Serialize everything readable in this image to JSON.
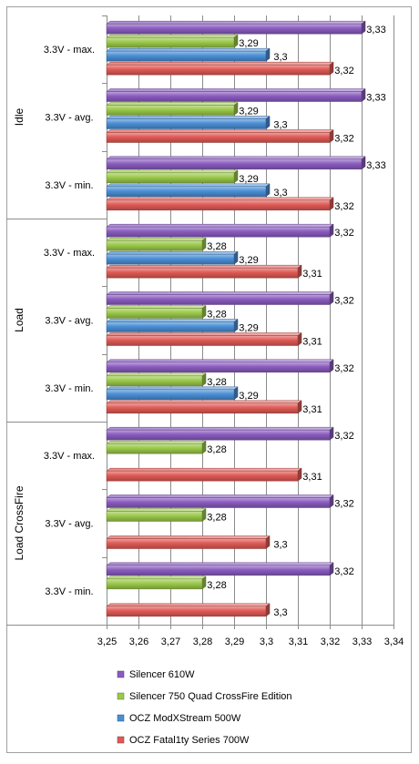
{
  "chart_data": {
    "type": "bar",
    "orientation": "horizontal",
    "title": "",
    "xlabel": "",
    "ylabel": "",
    "xlim": [
      3.25,
      3.34
    ],
    "x_ticks": [
      "3,25",
      "3,26",
      "3,27",
      "3,28",
      "3,29",
      "3,3",
      "3,31",
      "3,32",
      "3,33",
      "3,34"
    ],
    "grid": true,
    "legend_position": "bottom",
    "groups": [
      "Idle",
      "Load",
      "Load CrossFire"
    ],
    "categories": [
      {
        "group": "Idle",
        "label": "3.3V - max."
      },
      {
        "group": "Idle",
        "label": "3.3V - avg."
      },
      {
        "group": "Idle",
        "label": "3.3V - min."
      },
      {
        "group": "Load",
        "label": "3.3V - max."
      },
      {
        "group": "Load",
        "label": "3.3V - avg."
      },
      {
        "group": "Load",
        "label": "3.3V - min."
      },
      {
        "group": "Load CrossFire",
        "label": "3.3V - max."
      },
      {
        "group": "Load CrossFire",
        "label": "3.3V - avg."
      },
      {
        "group": "Load CrossFire",
        "label": "3.3V - min."
      }
    ],
    "series": [
      {
        "name": "Silencer 610W",
        "color": "#8a5cc0",
        "values": [
          3.33,
          3.33,
          3.33,
          3.32,
          3.32,
          3.32,
          3.32,
          3.32,
          3.32
        ],
        "labels": [
          "3,33",
          "3,33",
          "3,33",
          "3,32",
          "3,32",
          "3,32",
          "3,32",
          "3,32",
          "3,32"
        ]
      },
      {
        "name": "Silencer 750 Quad CrossFire Edition",
        "color": "#9bc94a",
        "values": [
          3.29,
          3.29,
          3.29,
          3.28,
          3.28,
          3.28,
          3.28,
          3.28,
          3.28
        ],
        "labels": [
          "3,29",
          "3,29",
          "3,29",
          "3,28",
          "3,28",
          "3,28",
          "3,28",
          "3,28",
          "3,28"
        ]
      },
      {
        "name": "OCZ ModXStream 500W",
        "color": "#4a8fd6",
        "values": [
          3.3,
          3.3,
          3.3,
          3.29,
          3.29,
          3.29,
          null,
          null,
          null
        ],
        "labels": [
          "3,3",
          "3,3",
          "3,3",
          "3,29",
          "3,29",
          "3,29",
          "",
          "",
          ""
        ]
      },
      {
        "name": "OCZ Fatal1ty Series 700W",
        "color": "#e05a55",
        "values": [
          3.32,
          3.32,
          3.32,
          3.31,
          3.31,
          3.31,
          3.31,
          3.3,
          3.3
        ],
        "labels": [
          "3,32",
          "3,32",
          "3,32",
          "3,31",
          "3,31",
          "3,31",
          "3,31",
          "3,3",
          "3,3"
        ]
      }
    ]
  }
}
